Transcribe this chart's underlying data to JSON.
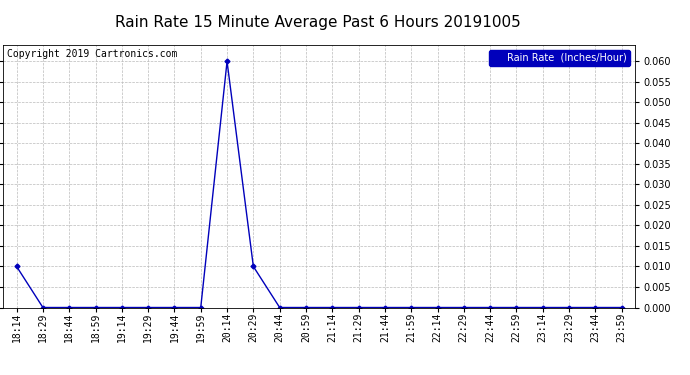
{
  "title": "Rain Rate 15 Minute Average Past 6 Hours 20191005",
  "copyright": "Copyright 2019 Cartronics.com",
  "legend_label": "Rain Rate  (Inches/Hour)",
  "line_color": "#0000BB",
  "background_color": "#ffffff",
  "grid_color": "#bbbbbb",
  "ylim": [
    0.0,
    0.064
  ],
  "yticks": [
    0.0,
    0.005,
    0.01,
    0.015,
    0.02,
    0.025,
    0.03,
    0.035,
    0.04,
    0.045,
    0.05,
    0.055,
    0.06
  ],
  "x_labels": [
    "18:14",
    "18:29",
    "18:44",
    "18:59",
    "19:14",
    "19:29",
    "19:44",
    "19:59",
    "20:14",
    "20:29",
    "20:44",
    "20:59",
    "21:14",
    "21:29",
    "21:44",
    "21:59",
    "22:14",
    "22:29",
    "22:44",
    "22:59",
    "23:14",
    "23:29",
    "23:44",
    "23:59"
  ],
  "y_values": [
    0.01,
    0.0,
    0.0,
    0.0,
    0.0,
    0.0,
    0.0,
    0.0,
    0.06,
    0.01,
    0.0,
    0.0,
    0.0,
    0.0,
    0.0,
    0.0,
    0.0,
    0.0,
    0.0,
    0.0,
    0.0,
    0.0,
    0.0,
    0.0
  ],
  "marker": "D",
  "marker_size": 2.5,
  "line_width": 1.0,
  "title_fontsize": 11,
  "legend_fontsize": 7,
  "tick_fontsize": 7,
  "copyright_fontsize": 7,
  "legend_bg": "#0000BB",
  "legend_text_color": "#ffffff"
}
